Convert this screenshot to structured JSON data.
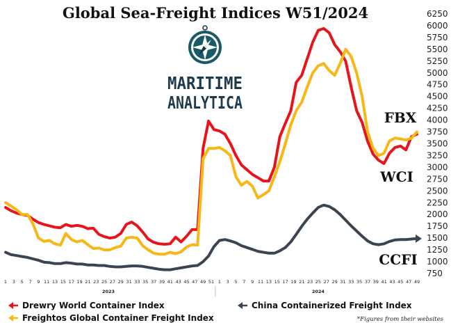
{
  "chart_data": {
    "type": "line",
    "title": "Global Sea-Freight Indices W51/2024",
    "ylim": [
      750,
      6250
    ],
    "yticks": [
      6250,
      6000,
      5750,
      5500,
      5250,
      5000,
      4750,
      4500,
      4250,
      4000,
      3750,
      3500,
      3250,
      3000,
      2750,
      2500,
      2250,
      2000,
      1750,
      1500,
      1250,
      1000,
      750
    ],
    "x_tick_labels": [
      "1",
      "3",
      "5",
      "7",
      "9",
      "11",
      "13",
      "15",
      "17",
      "19",
      "21",
      "23",
      "25",
      "27",
      "29",
      "31",
      "33",
      "35",
      "37",
      "39",
      "41",
      "43",
      "45",
      "47",
      "49",
      "51",
      "1",
      "3",
      "5",
      "7",
      "9",
      "11",
      "13",
      "15",
      "17",
      "19",
      "21",
      "23",
      "25",
      "27",
      "29",
      "31",
      "33",
      "35",
      "37",
      "39",
      "41",
      "43",
      "45",
      "47",
      "49"
    ],
    "years": [
      "2023",
      "2024"
    ],
    "grid": false,
    "legend_position": "bottom",
    "series": [
      {
        "name": "Drewry World Container Index",
        "short_label": "WCI",
        "color": "#e8141b",
        "values": [
          2150,
          2080,
          2030,
          2000,
          1980,
          1900,
          1830,
          1790,
          1760,
          1730,
          1720,
          1790,
          1750,
          1770,
          1750,
          1700,
          1710,
          1580,
          1530,
          1500,
          1520,
          1600,
          1790,
          1840,
          1760,
          1630,
          1480,
          1410,
          1380,
          1370,
          1380,
          1520,
          1420,
          1540,
          1680,
          1680,
          3400,
          3980,
          3800,
          3770,
          3700,
          3500,
          3250,
          3050,
          2950,
          2850,
          2780,
          2710,
          2710,
          3000,
          3650,
          3930,
          4200,
          4800,
          4950,
          5300,
          5650,
          5900,
          5940,
          5850,
          5600,
          5450,
          5250,
          4700,
          4200,
          3950,
          3550,
          3280,
          3150,
          3080,
          3300,
          3420,
          3450,
          3370,
          3650,
          3700
        ]
      },
      {
        "name": "Freightos Global Container Freight Index",
        "short_label": "FBX",
        "color": "#f7b817",
        "values": [
          2250,
          2180,
          2100,
          2000,
          2000,
          1800,
          1500,
          1430,
          1450,
          1380,
          1350,
          1600,
          1470,
          1420,
          1450,
          1360,
          1280,
          1290,
          1250,
          1250,
          1300,
          1330,
          1500,
          1520,
          1500,
          1340,
          1250,
          1180,
          1160,
          1160,
          1200,
          1170,
          1210,
          1310,
          1360,
          1350,
          3180,
          3400,
          3400,
          3420,
          3350,
          3250,
          2800,
          2620,
          2700,
          2600,
          2350,
          2420,
          2500,
          2800,
          3120,
          3500,
          3900,
          4200,
          4380,
          4700,
          5000,
          5150,
          5200,
          5050,
          4950,
          5200,
          5500,
          5350,
          5000,
          4500,
          3750,
          3400,
          3250,
          3300,
          3560,
          3620,
          3600,
          3580,
          3620,
          3750
        ]
      },
      {
        "name": "China Containerized Freight Index",
        "short_label": "CCFI",
        "color": "#3a4554",
        "values": [
          1200,
          1150,
          1130,
          1110,
          1090,
          1060,
          1030,
          990,
          980,
          960,
          960,
          980,
          970,
          950,
          950,
          930,
          930,
          920,
          920,
          900,
          890,
          890,
          900,
          910,
          910,
          900,
          880,
          860,
          840,
          830,
          830,
          850,
          870,
          890,
          910,
          920,
          1000,
          1120,
          1320,
          1450,
          1470,
          1440,
          1400,
          1340,
          1300,
          1260,
          1220,
          1200,
          1180,
          1180,
          1230,
          1300,
          1420,
          1580,
          1750,
          1900,
          2030,
          2150,
          2200,
          2170,
          2100,
          2000,
          1880,
          1760,
          1650,
          1540,
          1440,
          1380,
          1360,
          1380,
          1430,
          1460,
          1470,
          1470,
          1480,
          1490
        ]
      }
    ]
  },
  "logo": {
    "line1": "MARITIME",
    "line2": "ANALYTICA"
  },
  "legend": [
    {
      "label": "Drewry World Container Index",
      "color": "#e8141b"
    },
    {
      "label": "Freightos Global Container Freight Index",
      "color": "#f7b817"
    },
    {
      "label": "China Containerized Freight Index",
      "color": "#3a4554"
    }
  ],
  "footnote": "*Figures from their websites"
}
